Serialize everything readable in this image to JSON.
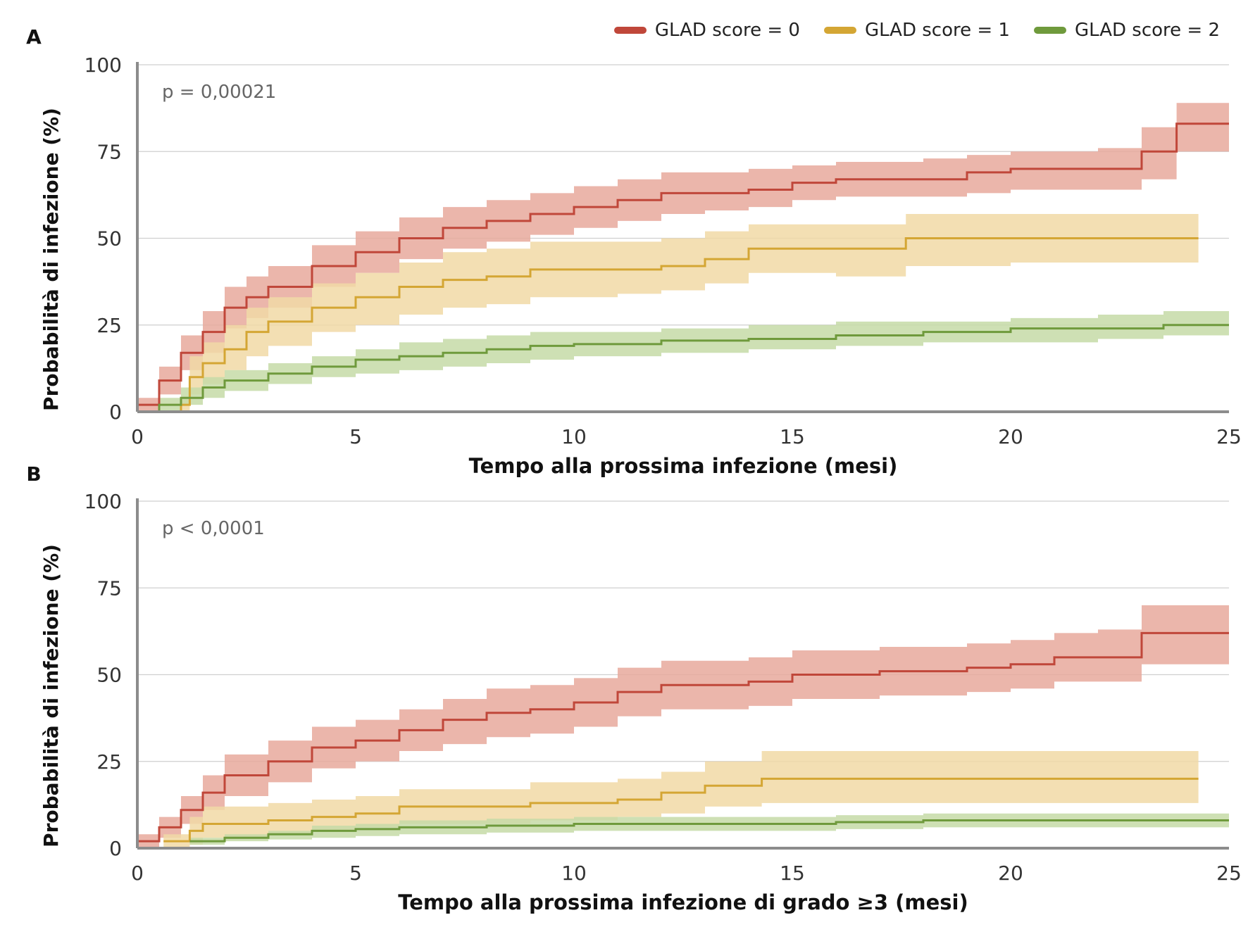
{
  "legend": [
    {
      "label": "GLAD score = 0",
      "color": "#c0473a"
    },
    {
      "label": "GLAD score = 1",
      "color": "#d4a634"
    },
    {
      "label": "GLAD score = 2",
      "color": "#6f9a3c"
    }
  ],
  "colors": {
    "band0": "#e8a99c",
    "band1": "#f1d9a6",
    "band2": "#c5dba7",
    "axis": "#8c8c8c",
    "grid": "#cfcfcf"
  },
  "chart_data": [
    {
      "type": "line",
      "panel_label": "A",
      "annotation": "p = 0,00021",
      "xlabel": "Tempo alla prossima infezione (mesi)",
      "ylabel": "Probabilità di infezione (%)",
      "xlim": [
        0,
        25
      ],
      "ylim": [
        0,
        100
      ],
      "xticks": [
        0,
        5,
        10,
        15,
        20,
        25
      ],
      "yticks": [
        0,
        25,
        50,
        75,
        100
      ],
      "grid": true,
      "series": [
        {
          "name": "GLAD score = 0",
          "step": true,
          "x": [
            0,
            0.5,
            1,
            1.5,
            2,
            2.5,
            3,
            4,
            5,
            6,
            7,
            8,
            9,
            10,
            11,
            12,
            13,
            14,
            15,
            16,
            17,
            18,
            19,
            20,
            21,
            22,
            23,
            23.8,
            25
          ],
          "y": [
            2,
            9,
            17,
            23,
            30,
            33,
            36,
            42,
            46,
            50,
            53,
            55,
            57,
            59,
            61,
            63,
            63,
            64,
            66,
            67,
            67,
            67,
            69,
            70,
            70,
            70,
            75,
            83,
            83
          ],
          "lower": [
            0,
            5,
            12,
            17,
            24,
            27,
            30,
            36,
            40,
            44,
            47,
            49,
            51,
            53,
            55,
            57,
            58,
            59,
            61,
            62,
            62,
            62,
            63,
            64,
            64,
            64,
            67,
            75,
            75
          ],
          "upper": [
            4,
            13,
            22,
            29,
            36,
            39,
            42,
            48,
            52,
            56,
            59,
            61,
            63,
            65,
            67,
            69,
            69,
            70,
            71,
            72,
            72,
            73,
            74,
            75,
            75,
            76,
            82,
            89,
            89
          ]
        },
        {
          "name": "GLAD score = 1",
          "step": true,
          "x": [
            0,
            0.5,
            1,
            1.2,
            1.5,
            2,
            2.5,
            3,
            4,
            5,
            6,
            7,
            8,
            9,
            10,
            11,
            12,
            13,
            14,
            15,
            16,
            17,
            17.6,
            20,
            22,
            24.3
          ],
          "y": [
            0,
            0,
            2,
            10,
            14,
            18,
            23,
            26,
            30,
            33,
            36,
            38,
            39,
            41,
            41,
            41,
            42,
            44,
            47,
            47,
            47,
            47,
            50,
            50,
            50,
            50
          ],
          "lower": [
            0,
            0,
            0,
            5,
            8,
            12,
            16,
            19,
            23,
            25,
            28,
            30,
            31,
            33,
            33,
            34,
            35,
            37,
            40,
            40,
            39,
            39,
            42,
            43,
            43,
            43
          ],
          "upper": [
            0,
            0,
            4,
            16,
            20,
            25,
            30,
            33,
            37,
            40,
            43,
            46,
            47,
            49,
            49,
            49,
            50,
            52,
            54,
            54,
            54,
            54,
            57,
            57,
            57,
            57
          ]
        },
        {
          "name": "GLAD score = 2",
          "step": true,
          "x": [
            0,
            0.5,
            1,
            1.5,
            2,
            3,
            4,
            5,
            6,
            7,
            8,
            9,
            10,
            12,
            14,
            16,
            18,
            20,
            22,
            23.5,
            25
          ],
          "y": [
            0,
            2,
            4,
            7,
            9,
            11,
            13,
            15,
            16,
            17,
            18,
            19,
            19.5,
            20.5,
            21,
            22,
            23,
            24,
            24,
            25,
            25
          ],
          "lower": [
            0,
            0,
            2,
            4,
            6,
            8,
            10,
            11,
            12,
            13,
            14,
            15,
            16,
            17,
            18,
            19,
            20,
            20,
            21,
            22,
            22
          ],
          "upper": [
            0,
            4,
            7,
            10,
            12,
            14,
            16,
            18,
            20,
            21,
            22,
            23,
            23,
            24,
            25,
            26,
            26,
            27,
            28,
            29,
            29
          ]
        }
      ]
    },
    {
      "type": "line",
      "panel_label": "B",
      "annotation": "p < 0,0001",
      "xlabel": "Tempo alla prossima infezione di grado ≥3 (mesi)",
      "ylabel": "Probabilità di infezione (%)",
      "xlim": [
        0,
        25
      ],
      "ylim": [
        0,
        100
      ],
      "xticks": [
        0,
        5,
        10,
        15,
        20,
        25
      ],
      "yticks": [
        0,
        25,
        50,
        75,
        100
      ],
      "grid": true,
      "series": [
        {
          "name": "GLAD score = 0",
          "step": true,
          "x": [
            0,
            0.5,
            1,
            1.5,
            2,
            3,
            4,
            5,
            6,
            7,
            8,
            9,
            10,
            11,
            12,
            13,
            14,
            15,
            16,
            17,
            18,
            19,
            20,
            21,
            22,
            23,
            25
          ],
          "y": [
            2,
            6,
            11,
            16,
            21,
            25,
            29,
            31,
            34,
            37,
            39,
            40,
            42,
            45,
            47,
            47,
            48,
            50,
            50,
            51,
            51,
            52,
            53,
            55,
            55,
            62,
            62
          ],
          "lower": [
            0,
            3,
            7,
            11,
            15,
            19,
            23,
            25,
            28,
            30,
            32,
            33,
            35,
            38,
            40,
            40,
            41,
            43,
            43,
            44,
            44,
            45,
            46,
            48,
            48,
            53,
            53
          ],
          "upper": [
            4,
            9,
            15,
            21,
            27,
            31,
            35,
            37,
            40,
            43,
            46,
            47,
            49,
            52,
            54,
            54,
            55,
            57,
            57,
            58,
            58,
            59,
            60,
            62,
            63,
            70,
            70
          ]
        },
        {
          "name": "GLAD score = 1",
          "step": true,
          "x": [
            0.6,
            1.2,
            1.5,
            3,
            4,
            5,
            6,
            9,
            11,
            12,
            13,
            14.3,
            17,
            20,
            22,
            24.3
          ],
          "y": [
            2,
            5,
            7,
            8,
            9,
            10,
            12,
            13,
            14,
            16,
            18,
            20,
            20,
            20,
            20,
            20
          ],
          "lower": [
            0,
            1,
            3,
            4,
            5,
            6,
            7,
            8,
            9,
            10,
            12,
            13,
            13,
            13,
            13,
            13
          ],
          "upper": [
            4,
            9,
            12,
            13,
            14,
            15,
            17,
            19,
            20,
            22,
            25,
            28,
            28,
            28,
            28,
            28
          ]
        },
        {
          "name": "GLAD score = 2",
          "step": true,
          "x": [
            1.2,
            2,
            3,
            4,
            5,
            6,
            8,
            10,
            12,
            14,
            16,
            18,
            20,
            22,
            25
          ],
          "y": [
            2,
            3,
            4,
            5,
            5.5,
            6,
            6.5,
            7,
            7,
            7,
            7.5,
            8,
            8,
            8,
            8
          ],
          "lower": [
            1,
            2,
            2.5,
            3,
            3.5,
            4,
            4.5,
            5,
            5,
            5,
            5.5,
            6,
            6,
            6,
            6
          ],
          "upper": [
            3,
            4,
            5,
            6.5,
            7,
            8,
            8.5,
            9,
            9,
            9,
            9.5,
            10,
            10,
            10,
            10
          ]
        }
      ]
    }
  ]
}
